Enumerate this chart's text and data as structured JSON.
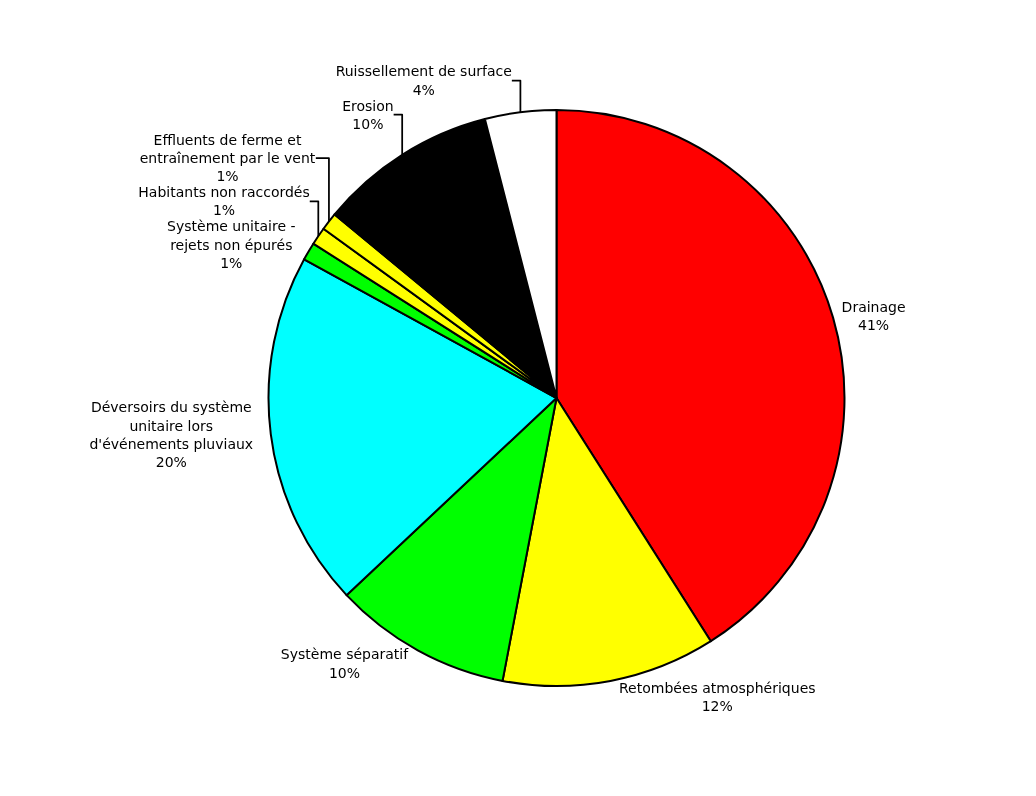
{
  "chart_data": {
    "type": "pie",
    "categories": [
      "Drainage",
      "Retombées atmosphériques",
      "Système séparatif",
      "Déversoirs du système unitaire lors d'événements pluviaux",
      "Système unitaire - rejets non épurés",
      "Habitants non raccordés",
      "Effluents de ferme et entraînement par le vent",
      "Erosion",
      "Ruissellement de surface"
    ],
    "values": [
      41,
      12,
      10,
      20,
      1,
      1,
      1,
      10,
      4
    ],
    "value_labels": [
      "41%",
      "12%",
      "10%",
      "20%",
      "1%",
      "1%",
      "1%",
      "10%",
      "4%"
    ],
    "colors": [
      "#ff0000",
      "#ffff00",
      "#00ff00",
      "#00ffff",
      "#00ff00",
      "#ffff00",
      "#ffff00",
      "#000000",
      "#ffffff"
    ],
    "legend": false
  }
}
